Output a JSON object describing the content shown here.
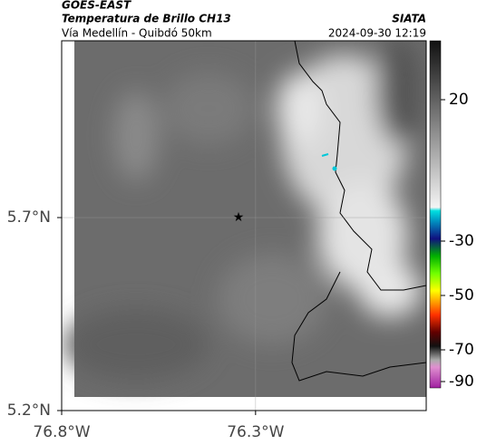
{
  "header": {
    "source": "GOES-EAST",
    "title": "Temperatura de Brillo CH13",
    "route": "Vía Medellín - Quibdó 50km",
    "org": "SIATA",
    "timestamp": "2024-09-30 12:19"
  },
  "map": {
    "xlim": [
      -76.8,
      -75.86
    ],
    "ylim": [
      5.2,
      6.158
    ],
    "xticks": [
      {
        "value": -76.8,
        "label": "76.8°W"
      },
      {
        "value": -76.3,
        "label": "76.3°W"
      }
    ],
    "yticks": [
      {
        "value": 5.2,
        "label": "5.2°N"
      },
      {
        "value": 5.7,
        "label": "5.7°N"
      }
    ],
    "grid": true
  },
  "colorbar": {
    "ticks": [
      20,
      -30,
      -50,
      -70,
      -90
    ]
  }
}
